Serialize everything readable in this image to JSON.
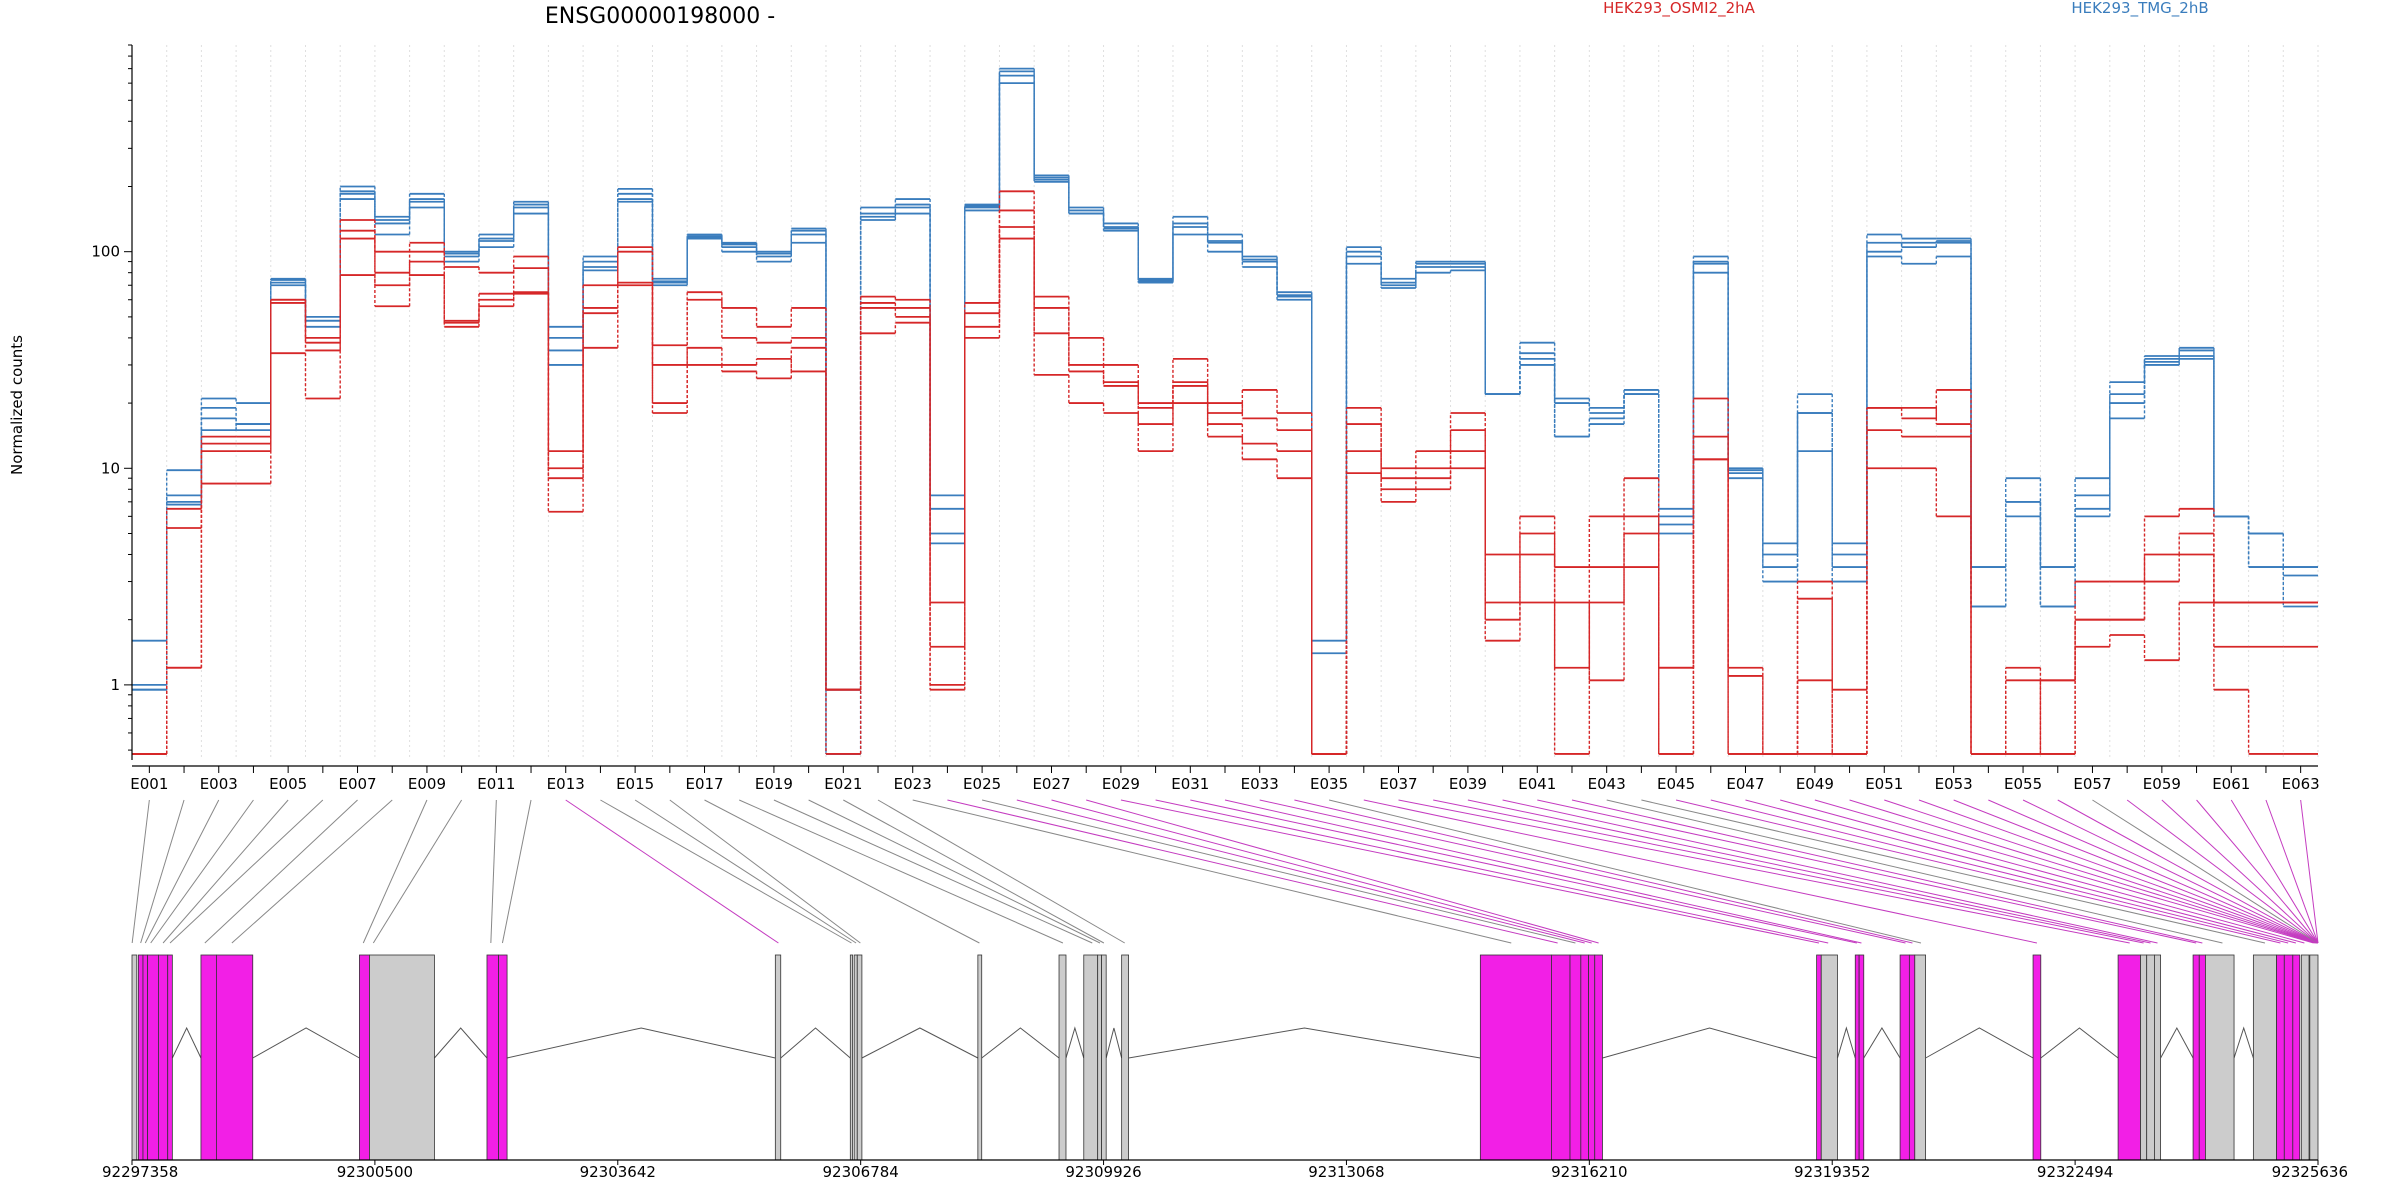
{
  "chart_data": {
    "type": "line",
    "title": "ENSG00000198000 -",
    "xlabel": "",
    "ylabel": "Normalized counts",
    "y_scale": "log",
    "ylim": [
      0.45,
      900
    ],
    "y_ticks": [
      1,
      10,
      100
    ],
    "y_tick_labels": [
      "1",
      "10",
      "100"
    ],
    "grid": "vertical dotted lines at exon boundaries",
    "legend_placement": "top",
    "exons": [
      "E001",
      "E002",
      "E003",
      "E004",
      "E005",
      "E006",
      "E007",
      "E008",
      "E009",
      "E010",
      "E011",
      "E012",
      "E013",
      "E014",
      "E015",
      "E016",
      "E017",
      "E018",
      "E019",
      "E020",
      "E021",
      "E022",
      "E023",
      "E024",
      "E025",
      "E026",
      "E027",
      "E028",
      "E029",
      "E030",
      "E031",
      "E032",
      "E033",
      "E034",
      "E035",
      "E036",
      "E037",
      "E038",
      "E039",
      "E040",
      "E041",
      "E042",
      "E043",
      "E044",
      "E045",
      "E046",
      "E047",
      "E048",
      "E049",
      "E050",
      "E051",
      "E052",
      "E053",
      "E054",
      "E055",
      "E056",
      "E057",
      "E058",
      "E059",
      "E060",
      "E061",
      "E062",
      "E063"
    ],
    "exon_tick_labels": [
      "E001",
      "E003",
      "E005",
      "E007",
      "E009",
      "E011",
      "E013",
      "E015",
      "E017",
      "E019",
      "E021",
      "E023",
      "E025",
      "E027",
      "E029",
      "E031",
      "E033",
      "E035",
      "E037",
      "E039",
      "E041",
      "E043",
      "E045",
      "E047",
      "E049",
      "E051",
      "E053",
      "E055",
      "E057",
      "E059",
      "E061",
      "E063"
    ],
    "groups": [
      {
        "name": "HEK293_OSMI2_2hA",
        "color": "#d62728"
      },
      {
        "name": "HEK293_TMG_2hB",
        "color": "#3a7dbd"
      }
    ],
    "series": [
      {
        "group": 1,
        "values": [
          1.0,
          6.8,
          17,
          15,
          75,
          48,
          200,
          145,
          185,
          100,
          120,
          170,
          45,
          85,
          195,
          75,
          115,
          110,
          100,
          125,
          0.95,
          160,
          175,
          7.5,
          165,
          700,
          225,
          160,
          135,
          75,
          145,
          120,
          95,
          65,
          1.6,
          105,
          75,
          90,
          90,
          22,
          38,
          21,
          19,
          23,
          6.5,
          95,
          10,
          4.5,
          22,
          4.5,
          120,
          115,
          115,
          3.5,
          9,
          3.5,
          9,
          25,
          33,
          36,
          6,
          5,
          3.5
        ]
      },
      {
        "group": 1,
        "values": [
          0.95,
          7.5,
          19,
          16,
          74,
          50,
          190,
          140,
          170,
          95,
          115,
          165,
          40,
          90,
          185,
          72,
          118,
          105,
          95,
          120,
          0.48,
          150,
          165,
          6.5,
          160,
          650,
          220,
          155,
          130,
          73,
          135,
          110,
          90,
          62,
          0.48,
          95,
          72,
          85,
          85,
          22,
          34,
          20,
          18,
          22,
          6,
          88,
          9.5,
          4,
          18,
          4,
          100,
          110,
          110,
          3.5,
          7,
          3.5,
          7.5,
          22,
          31,
          33,
          6,
          5,
          3.5
        ]
      },
      {
        "group": 1,
        "values": [
          1.6,
          9.8,
          21,
          20,
          70,
          45,
          175,
          120,
          160,
          90,
          105,
          150,
          35,
          95,
          170,
          70,
          120,
          100,
          90,
          110,
          0.48,
          140,
          150,
          5,
          155,
          600,
          210,
          150,
          125,
          72,
          120,
          100,
          85,
          60,
          0.48,
          88,
          70,
          80,
          82,
          22,
          30,
          14,
          16,
          22,
          5.5,
          80,
          9,
          3.5,
          12,
          3.5,
          95,
          88,
          95,
          2.3,
          6,
          2.3,
          6,
          17,
          30,
          32,
          6,
          3.5,
          3.2
        ]
      },
      {
        "group": 1,
        "values": [
          0.95,
          7,
          15,
          16,
          72,
          48,
          185,
          135,
          175,
          98,
          112,
          160,
          30,
          82,
          175,
          73,
          116,
          108,
          98,
          128,
          0.95,
          145,
          160,
          4.5,
          162,
          680,
          215,
          150,
          128,
          74,
          130,
          112,
          92,
          63,
          1.4,
          100,
          68,
          88,
          88,
          22,
          32,
          14,
          17,
          22,
          5,
          90,
          9.8,
          3,
          18,
          3,
          110,
          105,
          112,
          2.3,
          7,
          2.3,
          6.5,
          20,
          32,
          35,
          6,
          3.5,
          2.3
        ]
      },
      {
        "group": 0,
        "values": [
          0.48,
          5.3,
          13,
          13,
          60,
          40,
          140,
          100,
          110,
          85,
          80,
          95,
          10,
          70,
          105,
          37,
          65,
          55,
          45,
          55,
          0.95,
          58,
          55,
          0.95,
          52,
          190,
          55,
          40,
          30,
          20,
          25,
          20,
          17,
          15,
          0.48,
          19,
          10,
          12,
          15,
          4,
          6,
          3.5,
          6,
          9,
          1.2,
          21,
          1.2,
          0.48,
          3,
          0.95,
          19,
          17,
          23,
          0.48,
          1.2,
          0.48,
          3,
          3,
          6,
          6.5,
          0.95,
          0.48,
          0.48
        ]
      },
      {
        "group": 0,
        "values": [
          0.48,
          1.2,
          8.5,
          8.5,
          34,
          21,
          115,
          70,
          90,
          45,
          64,
          84,
          6.3,
          52,
          72,
          20,
          36,
          30,
          32,
          28,
          0.95,
          62,
          60,
          2.4,
          58,
          155,
          62,
          30,
          25,
          19,
          32,
          18,
          23,
          18,
          0.48,
          16,
          8,
          10,
          18,
          2.4,
          5,
          2.4,
          1.05,
          6,
          0.48,
          14,
          0.48,
          0.48,
          1.05,
          0.48,
          19,
          19,
          16,
          0.48,
          0.48,
          1.05,
          2,
          2,
          3,
          4,
          2.4,
          2.4,
          2.4
        ]
      },
      {
        "group": 0,
        "values": [
          0.48,
          1.2,
          14,
          14,
          60,
          35,
          78,
          56,
          78,
          47,
          56,
          64,
          12,
          36,
          70,
          18,
          30,
          28,
          26,
          36,
          0.95,
          42,
          47,
          1,
          40,
          115,
          27,
          20,
          18,
          12,
          20,
          14,
          11,
          9,
          0.48,
          9.5,
          7,
          8,
          12,
          1.6,
          2.4,
          0.48,
          2.4,
          3.5,
          1.2,
          11,
          0.48,
          0.48,
          0.48,
          0.48,
          10,
          10,
          6,
          0.48,
          1.05,
          1.05,
          1.5,
          1.7,
          1.3,
          2.4,
          2.4,
          2.4,
          2.4
        ]
      },
      {
        "group": 0,
        "values": [
          0.48,
          6.5,
          12,
          12,
          58,
          38,
          125,
          80,
          100,
          48,
          60,
          65,
          9,
          55,
          100,
          30,
          60,
          40,
          38,
          40,
          0.48,
          55,
          50,
          1.5,
          45,
          130,
          42,
          28,
          24,
          16,
          24,
          16,
          13,
          12,
          0.48,
          12,
          9,
          9,
          10,
          2,
          4,
          1.2,
          3.5,
          5,
          0.48,
          11,
          1.1,
          0.48,
          2.5,
          0.48,
          15,
          14,
          14,
          0.48,
          0.48,
          0.48,
          2,
          2,
          4,
          5,
          1.5,
          1.5,
          1.5
        ]
      }
    ],
    "genomic_axis_labels": [
      "92297358",
      "92300500",
      "92303642",
      "92306784",
      "92309926",
      "92313068",
      "92316210",
      "92319352",
      "92322494",
      "92325636"
    ],
    "genomic_axis_values": [
      92297358,
      92300500,
      92303642,
      92306784,
      92309926,
      92313068,
      92316210,
      92319352,
      92322494,
      92325636
    ],
    "gene_model": [
      {
        "start": 92297358,
        "end": 92297420,
        "hl": false
      },
      {
        "start": 92297440,
        "end": 92297500,
        "hl": true
      },
      {
        "start": 92297500,
        "end": 92297560,
        "hl": true
      },
      {
        "start": 92297560,
        "end": 92297700,
        "hl": true
      },
      {
        "start": 92297700,
        "end": 92297820,
        "hl": true
      },
      {
        "start": 92297820,
        "end": 92297880,
        "hl": true
      },
      {
        "start": 92298250,
        "end": 92298450,
        "hl": true
      },
      {
        "start": 92298450,
        "end": 92298920,
        "hl": true
      },
      {
        "start": 92300300,
        "end": 92300430,
        "hl": true
      },
      {
        "start": 92300430,
        "end": 92301270,
        "hl": false
      },
      {
        "start": 92301950,
        "end": 92302100,
        "hl": true
      },
      {
        "start": 92302100,
        "end": 92302210,
        "hl": true
      },
      {
        "start": 92305680,
        "end": 92305750,
        "hl": false
      },
      {
        "start": 92306650,
        "end": 92306680,
        "hl": false
      },
      {
        "start": 92306700,
        "end": 92306740,
        "hl": false
      },
      {
        "start": 92306740,
        "end": 92306800,
        "hl": false
      },
      {
        "start": 92308300,
        "end": 92308350,
        "hl": false
      },
      {
        "start": 92309350,
        "end": 92309440,
        "hl": false
      },
      {
        "start": 92309670,
        "end": 92309850,
        "hl": false
      },
      {
        "start": 92309850,
        "end": 92309900,
        "hl": false
      },
      {
        "start": 92309900,
        "end": 92309960,
        "hl": false
      },
      {
        "start": 92310160,
        "end": 92310250,
        "hl": false
      },
      {
        "start": 92314800,
        "end": 92315720,
        "hl": true
      },
      {
        "start": 92315720,
        "end": 92315960,
        "hl": true
      },
      {
        "start": 92315960,
        "end": 92316100,
        "hl": true
      },
      {
        "start": 92316100,
        "end": 92316200,
        "hl": true
      },
      {
        "start": 92316200,
        "end": 92316280,
        "hl": true
      },
      {
        "start": 92316280,
        "end": 92316380,
        "hl": true
      },
      {
        "start": 92319150,
        "end": 92319210,
        "hl": true
      },
      {
        "start": 92319210,
        "end": 92319420,
        "hl": false
      },
      {
        "start": 92319650,
        "end": 92319700,
        "hl": true
      },
      {
        "start": 92319700,
        "end": 92319760,
        "hl": true
      },
      {
        "start": 92320230,
        "end": 92320350,
        "hl": true
      },
      {
        "start": 92320350,
        "end": 92320420,
        "hl": true
      },
      {
        "start": 92320420,
        "end": 92320560,
        "hl": false
      },
      {
        "start": 92321950,
        "end": 92322050,
        "hl": true
      },
      {
        "start": 92323050,
        "end": 92323340,
        "hl": true
      },
      {
        "start": 92323340,
        "end": 92323420,
        "hl": false
      },
      {
        "start": 92323420,
        "end": 92323520,
        "hl": false
      },
      {
        "start": 92323520,
        "end": 92323600,
        "hl": false
      },
      {
        "start": 92324020,
        "end": 92324100,
        "hl": true
      },
      {
        "start": 92324100,
        "end": 92324180,
        "hl": true
      },
      {
        "start": 92324180,
        "end": 92324550,
        "hl": false
      },
      {
        "start": 92324800,
        "end": 92325100,
        "hl": false
      },
      {
        "start": 92325100,
        "end": 92325200,
        "hl": true
      },
      {
        "start": 92325200,
        "end": 92325310,
        "hl": true
      },
      {
        "start": 92325310,
        "end": 92325400,
        "hl": true
      },
      {
        "start": 92325420,
        "end": 92325520,
        "hl": false
      },
      {
        "start": 92325530,
        "end": 92325636,
        "hl": false
      }
    ],
    "exon_positions": [
      92297360,
      92297470,
      92297530,
      92297600,
      92297760,
      92297850,
      92298300,
      92298650,
      92300350,
      92300480,
      92302000,
      92302150,
      92305720,
      92306665,
      92306725,
      92306780,
      92308320,
      92309400,
      92309780,
      92309880,
      92309930,
      92310200,
      92315200,
      92315800,
      92316030,
      92316150,
      92316240,
      92316330,
      92319180,
      92319300,
      92319670,
      92319730,
      92320300,
      92320390,
      92320500,
      92322000,
      92323200,
      92323380,
      92323470,
      92323560,
      92324060,
      92324140,
      92324400,
      92324950,
      92325150,
      92325250,
      92325350,
      92325460,
      92325580,
      92325600,
      92325610,
      92325620,
      92325625,
      92325628,
      92325630,
      92325632,
      92325633,
      92325634,
      92325635,
      92325636,
      92325636,
      92325636,
      92325636
    ],
    "highlight_color": "#f21fe6",
    "exon_fill_color": "#cccccc"
  }
}
